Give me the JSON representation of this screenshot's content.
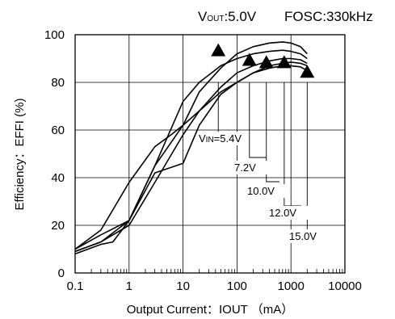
{
  "header": {
    "vout_label": "V",
    "vout_sub": "OUT",
    "vout_value": ":5.0V",
    "fosc_label": "FOSC:330kHz"
  },
  "chart_data": {
    "type": "line",
    "xscale": "log",
    "xlim": [
      0.1,
      10000
    ],
    "ylim": [
      0,
      100
    ],
    "xticks": [
      0.1,
      1,
      10,
      100,
      1000,
      10000
    ],
    "xticklabels": [
      "0.1",
      "1",
      "10",
      "100",
      "1000",
      "10000"
    ],
    "yticks": [
      0,
      20,
      40,
      60,
      80,
      100
    ],
    "yticklabels": [
      "0",
      "20",
      "40",
      "60",
      "80",
      "100"
    ],
    "grid": true,
    "xlabel": "Output Current：IOUT （mA）",
    "ylabel": "Efficiency：EFFI (%)",
    "series": [
      {
        "name": "VIN=5.4V",
        "x": [
          0.1,
          0.3,
          1,
          3,
          6,
          10,
          20,
          50,
          100,
          200,
          400,
          700,
          1000,
          1500,
          2000
        ],
        "y": [
          10,
          18,
          38,
          53,
          58,
          62,
          76,
          86,
          92,
          95,
          96.5,
          97,
          96.5,
          95,
          92
        ],
        "marker_x": 45,
        "marker_y": 93
      },
      {
        "name": "7.2V",
        "x": [
          0.1,
          0.3,
          1,
          3,
          10,
          20,
          50,
          100,
          200,
          400,
          700,
          1000,
          1500,
          2000
        ],
        "y": [
          10,
          16,
          22,
          45,
          72,
          80,
          87,
          90,
          92,
          93,
          93.5,
          93,
          92,
          90
        ],
        "marker_x": 170,
        "marker_y": 89
      },
      {
        "name": "10.0V",
        "x": [
          0.1,
          0.3,
          1,
          3,
          10,
          20,
          50,
          100,
          200,
          400,
          700,
          1000,
          1500,
          2000
        ],
        "y": [
          9,
          13,
          20,
          38,
          58,
          68,
          78,
          84,
          87,
          89,
          90,
          90,
          89.5,
          88
        ],
        "marker_x": 350,
        "marker_y": 88
      },
      {
        "name": "12.0V",
        "x": [
          0.1,
          0.3,
          1,
          3,
          10,
          20,
          50,
          100,
          200,
          400,
          700,
          1000,
          1500,
          2000
        ],
        "y": [
          9,
          13,
          22,
          45,
          62,
          68,
          76,
          80,
          84,
          87,
          88,
          88.5,
          88,
          87
        ],
        "marker_x": 750,
        "marker_y": 88
      },
      {
        "name": "15.0V",
        "x": [
          0.1,
          0.3,
          0.5,
          1,
          3,
          10,
          20,
          50,
          100,
          200,
          400,
          700,
          1000,
          1500,
          2000
        ],
        "y": [
          8,
          12,
          13,
          22,
          42,
          46,
          62,
          75,
          80,
          84,
          86,
          87,
          87,
          86.5,
          85
        ],
        "marker_x": 2000,
        "marker_y": 84
      }
    ]
  }
}
